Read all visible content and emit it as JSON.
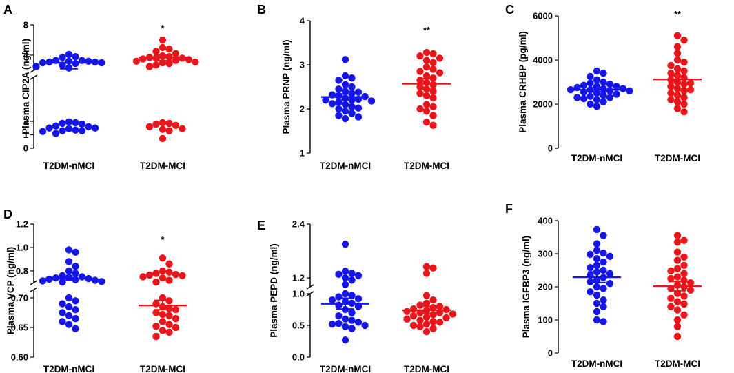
{
  "colors": {
    "group1": "#1515e8",
    "group2": "#e8151b"
  },
  "chart_data": [
    {
      "letter": "A",
      "type": "scatter",
      "ylabel": "Plasma CIP2A (ng/ml)",
      "categories": [
        "T2DM-nMCI",
        "T2DM-MCI"
      ],
      "axis_segments": [
        {
          "range": [
            0,
            2
          ],
          "ticks": [
            0,
            1,
            2
          ]
        },
        {
          "range": [
            2,
            8
          ],
          "ticks": [
            4,
            8
          ]
        }
      ],
      "groups": [
        {
          "name": "T2DM-nMCI",
          "mean": 3.0,
          "sem_low": 2.2,
          "sem_high": 3.0,
          "points": [
            4.1,
            3.7,
            3.8,
            3.3,
            3.2,
            3.1,
            3.0,
            3.0,
            3.1,
            3.2,
            3.3,
            2.9,
            2.7,
            2.5,
            2.3,
            1.96,
            1.9,
            1.85,
            1.8,
            1.65,
            1.6,
            1.5,
            1.5,
            1.45,
            1.35,
            1.3,
            1.3,
            1.25,
            1.1
          ]
        },
        {
          "name": "T2DM-MCI",
          "mean": 3.7,
          "sem_low": 3.3,
          "sem_high": 4.0,
          "points": [
            6.0,
            5.0,
            4.8,
            4.5,
            4.2,
            3.9,
            3.8,
            3.7,
            3.6,
            3.5,
            3.6,
            3.4,
            3.3,
            3.2,
            3.1,
            3.0,
            2.9,
            2.7,
            2.5,
            1.9,
            1.85,
            1.8,
            1.7,
            1.6,
            1.45,
            1.4,
            1.3,
            0.72
          ]
        }
      ],
      "annotation": "*"
    },
    {
      "letter": "B",
      "type": "scatter",
      "ylabel": "Plasma PRNP (ng/ml)",
      "categories": [
        "T2DM-nMCI",
        "T2DM-MCI"
      ],
      "axis_segments": [
        {
          "range": [
            1,
            4
          ],
          "ticks": [
            1,
            2,
            3,
            4
          ]
        }
      ],
      "groups": [
        {
          "name": "T2DM-nMCI",
          "mean": 2.27,
          "sem_low": 2.2,
          "sem_high": 2.34,
          "points": [
            3.12,
            2.75,
            2.7,
            2.65,
            2.55,
            2.5,
            2.45,
            2.4,
            2.38,
            2.35,
            2.32,
            2.3,
            2.28,
            2.25,
            2.22,
            2.2,
            2.2,
            2.18,
            2.15,
            2.12,
            2.1,
            2.05,
            2.02,
            2.0,
            1.95,
            1.9,
            1.85,
            1.82,
            1.78
          ]
        },
        {
          "name": "T2DM-MCI",
          "mean": 2.57,
          "sem_low": 2.45,
          "sem_high": 2.69,
          "points": [
            3.28,
            3.25,
            3.2,
            3.15,
            3.1,
            3.05,
            2.95,
            2.9,
            2.85,
            2.82,
            2.75,
            2.7,
            2.65,
            2.6,
            2.55,
            2.5,
            2.45,
            2.4,
            2.35,
            2.3,
            2.25,
            2.1,
            2.05,
            2.0,
            1.95,
            1.85,
            1.7,
            1.63
          ]
        }
      ],
      "annotation": "**"
    },
    {
      "letter": "C",
      "type": "scatter",
      "ylabel": "Plasma CRHBP (pg/ml)",
      "categories": [
        "T2DM-nMCI",
        "T2DM-MCI"
      ],
      "axis_segments": [
        {
          "range": [
            0,
            6000
          ],
          "ticks": [
            0,
            2000,
            4000,
            6000
          ]
        }
      ],
      "groups": [
        {
          "name": "T2DM-nMCI",
          "mean": 2650,
          "sem_low": 2560,
          "sem_high": 2740,
          "points": [
            3500,
            3400,
            3250,
            3100,
            3000,
            2950,
            2900,
            2850,
            2800,
            2800,
            2750,
            2700,
            2700,
            2650,
            2650,
            2600,
            2600,
            2550,
            2500,
            2450,
            2400,
            2350,
            2300,
            2300,
            2250,
            2200,
            2100,
            2000,
            1900
          ]
        },
        {
          "name": "T2DM-MCI",
          "mean": 3120,
          "sem_low": 2950,
          "sem_high": 3280,
          "points": [
            5100,
            4900,
            4600,
            4300,
            4000,
            3900,
            3750,
            3600,
            3500,
            3400,
            3300,
            3200,
            3100,
            3000,
            2950,
            2900,
            2800,
            2700,
            2650,
            2600,
            2500,
            2400,
            2300,
            2200,
            2100,
            2000,
            1800,
            1650
          ]
        }
      ],
      "annotation": "**"
    },
    {
      "letter": "D",
      "type": "scatter",
      "ylabel": "Plasma VCP (ng/ml)",
      "categories": [
        "T2DM-nMCI",
        "T2DM-MCI"
      ],
      "axis_segments": [
        {
          "range": [
            0.6,
            0.7
          ],
          "ticks": [
            0.6,
            0.65,
            0.7
          ]
        },
        {
          "range": [
            0.7,
            1.2
          ],
          "ticks": [
            0.8,
            1.0,
            1.2
          ]
        }
      ],
      "tick_format": [
        2,
        1
      ],
      "groups": [
        {
          "name": "T2DM-nMCI",
          "mean": 0.735,
          "sem_low": 0.72,
          "sem_high": 0.745,
          "points": [
            0.98,
            0.96,
            0.88,
            0.84,
            0.8,
            0.78,
            0.76,
            0.75,
            0.745,
            0.74,
            0.735,
            0.73,
            0.725,
            0.72,
            0.715,
            0.71,
            0.705,
            0.7,
            0.695,
            0.69,
            0.685,
            0.68,
            0.675,
            0.67,
            0.665,
            0.66,
            0.655,
            0.648
          ]
        },
        {
          "name": "T2DM-MCI",
          "mean": 0.687,
          "sem_low": 0.68,
          "sem_high": 0.696,
          "points": [
            0.91,
            0.86,
            0.8,
            0.79,
            0.78,
            0.77,
            0.765,
            0.76,
            0.75,
            0.74,
            0.72,
            0.705,
            0.7,
            0.695,
            0.69,
            0.685,
            0.682,
            0.68,
            0.675,
            0.672,
            0.67,
            0.665,
            0.66,
            0.655,
            0.652,
            0.65,
            0.645,
            0.642,
            0.635
          ]
        }
      ],
      "annotation": "*"
    },
    {
      "letter": "E",
      "type": "scatter",
      "ylabel": "Plasma PEPD (ng/ml)",
      "categories": [
        "T2DM-nMCI",
        "T2DM-MCI"
      ],
      "axis_segments": [
        {
          "range": [
            0.0,
            1.0
          ],
          "ticks": [
            0.0,
            0.5,
            1.0
          ]
        },
        {
          "range": [
            1.0,
            2.4
          ],
          "ticks": [
            1.2,
            2.4
          ]
        }
      ],
      "tick_format": [
        1,
        1
      ],
      "groups": [
        {
          "name": "T2DM-nMCI",
          "mean": 0.84,
          "sem_low": 0.76,
          "sem_high": 0.93,
          "points": [
            1.95,
            1.35,
            1.3,
            1.28,
            1.25,
            1.2,
            1.15,
            1.05,
            1.0,
            0.97,
            0.95,
            0.92,
            0.9,
            0.88,
            0.85,
            0.82,
            0.8,
            0.75,
            0.7,
            0.65,
            0.6,
            0.58,
            0.55,
            0.53,
            0.52,
            0.5,
            0.48,
            0.45,
            0.27
          ]
        },
        {
          "name": "T2DM-MCI",
          "mean": 0.74,
          "sem_low": 0.69,
          "sem_high": 0.8,
          "points": [
            1.45,
            1.42,
            1.3,
            0.97,
            0.9,
            0.85,
            0.82,
            0.8,
            0.78,
            0.76,
            0.75,
            0.74,
            0.72,
            0.7,
            0.7,
            0.68,
            0.67,
            0.65,
            0.63,
            0.62,
            0.6,
            0.58,
            0.56,
            0.55,
            0.52,
            0.5,
            0.48,
            0.45,
            0.4
          ]
        }
      ],
      "annotation": ""
    },
    {
      "letter": "F",
      "type": "scatter",
      "ylabel": "Plasma IGFBP3 (ng/ml)",
      "categories": [
        "T2DM-nMCI",
        "T2DM-MCI"
      ],
      "axis_segments": [
        {
          "range": [
            0,
            400
          ],
          "ticks": [
            0,
            100,
            200,
            300,
            400
          ]
        }
      ],
      "groups": [
        {
          "name": "T2DM-nMCI",
          "mean": 229,
          "sem_low": 213,
          "sem_high": 245,
          "points": [
            373,
            355,
            330,
            310,
            302,
            298,
            292,
            285,
            275,
            265,
            258,
            250,
            245,
            240,
            235,
            228,
            220,
            215,
            210,
            200,
            195,
            185,
            175,
            160,
            150,
            140,
            125,
            100,
            95
          ]
        },
        {
          "name": "T2DM-MCI",
          "mean": 202,
          "sem_low": 188,
          "sem_high": 216,
          "points": [
            355,
            340,
            335,
            305,
            290,
            280,
            265,
            255,
            248,
            240,
            230,
            225,
            220,
            212,
            205,
            200,
            195,
            190,
            180,
            172,
            165,
            155,
            148,
            140,
            130,
            115,
            100,
            80,
            50
          ]
        }
      ],
      "annotation": ""
    }
  ]
}
